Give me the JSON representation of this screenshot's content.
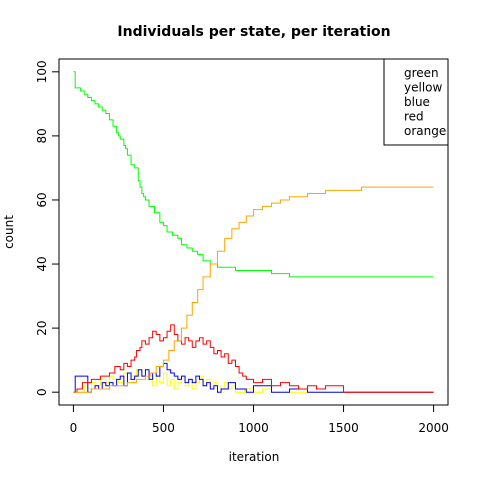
{
  "chart_data": {
    "type": "line",
    "title": "Individuals per state, per iteration",
    "xlabel": "iteration",
    "ylabel": "count",
    "xlim": [
      -80,
      2080
    ],
    "ylim": [
      -4,
      104
    ],
    "xticks": [
      0,
      500,
      1000,
      1500,
      2000
    ],
    "yticks": [
      0,
      20,
      40,
      60,
      80,
      100
    ],
    "grid": false,
    "legend_position": "top-right",
    "series": [
      {
        "name": "green",
        "color": "#00ff00",
        "step": true,
        "x": [
          0,
          10,
          40,
          60,
          80,
          100,
          120,
          140,
          160,
          180,
          200,
          220,
          240,
          250,
          260,
          280,
          290,
          300,
          320,
          340,
          360,
          370,
          380,
          390,
          400,
          420,
          450,
          480,
          500,
          520,
          550,
          580,
          600,
          630,
          660,
          690,
          720,
          760,
          800,
          900,
          1000,
          1100,
          1150,
          1200,
          1300,
          2000
        ],
        "y": [
          100,
          95,
          94,
          93,
          92,
          91,
          90,
          89,
          88,
          87,
          85,
          83,
          81,
          80,
          79,
          77,
          76,
          74,
          71,
          70,
          66,
          64,
          62,
          61,
          60,
          58,
          56,
          53,
          52,
          50,
          49,
          48,
          46,
          45,
          44,
          43,
          41,
          40,
          39,
          38,
          38,
          37,
          37,
          36,
          36,
          36
        ]
      },
      {
        "name": "yellow",
        "color": "#ffff00",
        "step": true,
        "x": [
          0,
          30,
          60,
          80,
          100,
          120,
          150,
          180,
          200,
          220,
          250,
          280,
          300,
          320,
          350,
          380,
          400,
          420,
          440,
          460,
          480,
          500,
          520,
          540,
          560,
          580,
          600,
          620,
          640,
          660,
          680,
          700,
          720,
          740,
          760,
          780,
          800,
          820,
          840,
          860,
          880,
          900,
          950,
          1000,
          1050,
          1100,
          2000
        ],
        "y": [
          0,
          0,
          2,
          1,
          3,
          2,
          4,
          3,
          5,
          4,
          3,
          6,
          4,
          5,
          7,
          5,
          4,
          6,
          2,
          5,
          3,
          6,
          2,
          4,
          1,
          3,
          5,
          2,
          4,
          1,
          3,
          5,
          2,
          4,
          1,
          3,
          2,
          1,
          3,
          1,
          2,
          0,
          1,
          0,
          1,
          0,
          0
        ]
      },
      {
        "name": "blue",
        "color": "#0000ff",
        "step": true,
        "x": [
          0,
          10,
          60,
          80,
          100,
          120,
          140,
          160,
          180,
          200,
          220,
          240,
          260,
          280,
          300,
          320,
          340,
          360,
          380,
          400,
          420,
          440,
          460,
          480,
          500,
          520,
          540,
          560,
          580,
          600,
          620,
          640,
          660,
          680,
          700,
          720,
          740,
          760,
          780,
          800,
          820,
          860,
          900,
          960,
          1000,
          1100,
          1200,
          1300,
          2000
        ],
        "y": [
          0,
          5,
          5,
          0,
          1,
          2,
          1,
          3,
          2,
          3,
          2,
          4,
          5,
          2,
          6,
          4,
          5,
          7,
          5,
          7,
          4,
          6,
          5,
          8,
          9,
          7,
          6,
          5,
          4,
          5,
          3,
          4,
          3,
          5,
          4,
          2,
          3,
          1,
          2,
          0,
          1,
          3,
          1,
          0,
          2,
          0,
          1,
          0,
          0
        ]
      },
      {
        "name": "red",
        "color": "#ff0000",
        "step": true,
        "x": [
          0,
          20,
          50,
          100,
          150,
          200,
          230,
          260,
          280,
          300,
          320,
          340,
          350,
          370,
          380,
          400,
          420,
          440,
          460,
          480,
          500,
          520,
          540,
          560,
          580,
          600,
          620,
          640,
          660,
          680,
          700,
          720,
          740,
          760,
          780,
          800,
          820,
          840,
          860,
          880,
          900,
          920,
          940,
          960,
          1000,
          1050,
          1100,
          1150,
          1200,
          1250,
          1300,
          1350,
          1400,
          1500,
          2000
        ],
        "y": [
          0,
          1,
          3,
          4,
          5,
          6,
          8,
          7,
          9,
          8,
          10,
          11,
          13,
          14,
          16,
          15,
          17,
          19,
          18,
          16,
          17,
          19,
          21,
          18,
          16,
          15,
          17,
          16,
          14,
          16,
          17,
          15,
          16,
          14,
          12,
          13,
          11,
          12,
          9,
          10,
          8,
          6,
          5,
          4,
          3,
          4,
          2,
          3,
          2,
          1,
          2,
          1,
          2,
          0,
          0
        ]
      },
      {
        "name": "orange",
        "color": "#ffa500",
        "step": true,
        "x": [
          0,
          100,
          200,
          300,
          350,
          400,
          430,
          460,
          500,
          530,
          560,
          600,
          630,
          660,
          690,
          720,
          760,
          800,
          840,
          880,
          920,
          960,
          1000,
          1050,
          1100,
          1150,
          1200,
          1300,
          1400,
          1500,
          1600,
          1800,
          2000
        ],
        "y": [
          0,
          1,
          2,
          3,
          4,
          5,
          6,
          8,
          10,
          13,
          16,
          20,
          24,
          28,
          32,
          36,
          40,
          44,
          48,
          51,
          53,
          55,
          57,
          58,
          59,
          60,
          61,
          62,
          63,
          63,
          64,
          64,
          64
        ]
      }
    ]
  }
}
